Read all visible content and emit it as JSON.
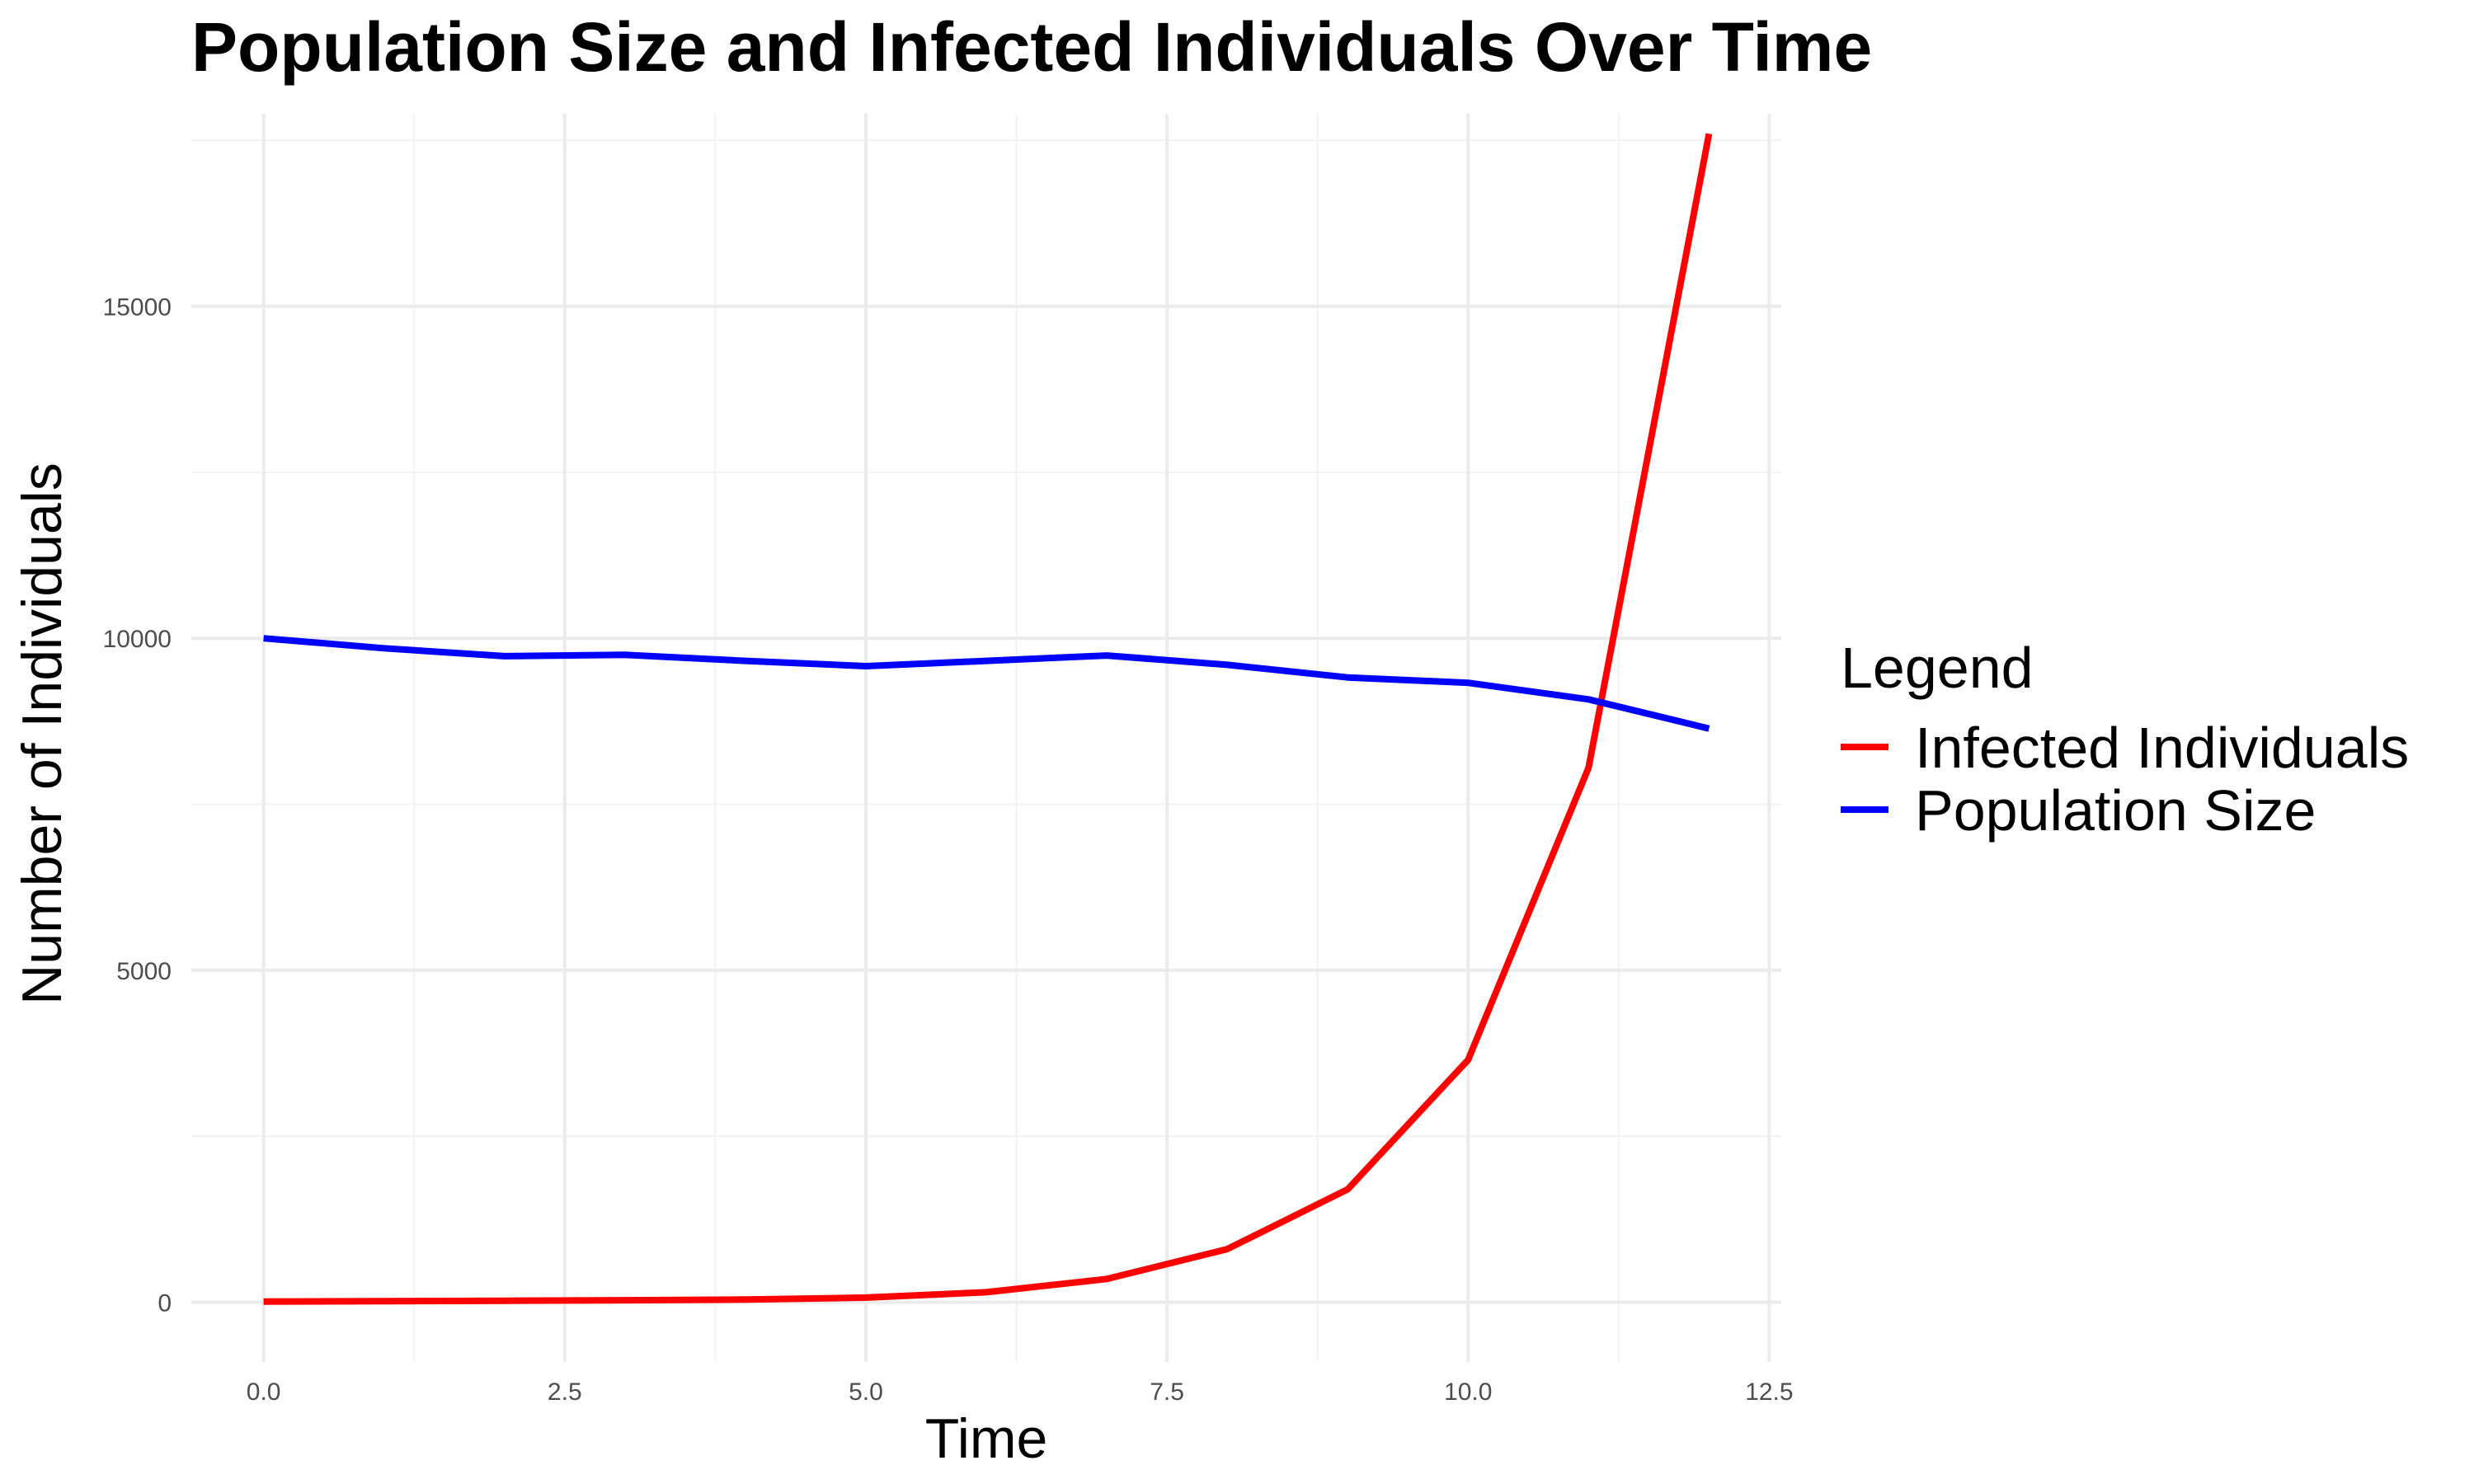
{
  "chart_data": {
    "type": "line",
    "title": "Population Size and Infected Individuals Over Time",
    "xlabel": "Time",
    "ylabel": "Number of Individuals",
    "xlim": [
      -0.6,
      12.6
    ],
    "ylim": [
      -900,
      17900
    ],
    "x_ticks": [
      0,
      2.5,
      5,
      7.5,
      10,
      12.5
    ],
    "x_tick_labels": [
      "0.0",
      "2.5",
      "5.0",
      "7.5",
      "10.0",
      "12.5"
    ],
    "y_ticks": [
      0,
      5000,
      10000,
      15000
    ],
    "y_tick_labels": [
      "0",
      "5000",
      "10000",
      "15000"
    ],
    "grid": true,
    "legend": {
      "title": "Legend",
      "placement": "right"
    },
    "x": [
      0,
      1,
      2,
      3,
      4,
      5,
      6,
      7,
      8,
      9,
      10,
      11,
      12
    ],
    "series": [
      {
        "name": "Infected Individuals",
        "color": "#ff0000",
        "values": [
          10,
          15,
          22,
          30,
          40,
          70,
          150,
          350,
          800,
          1700,
          3650,
          8050,
          17600
        ]
      },
      {
        "name": "Population Size",
        "color": "#0000ff",
        "values": [
          10000,
          9850,
          9730,
          9750,
          9660,
          9580,
          9660,
          9740,
          9600,
          9410,
          9330,
          9080,
          8640
        ]
      }
    ]
  }
}
